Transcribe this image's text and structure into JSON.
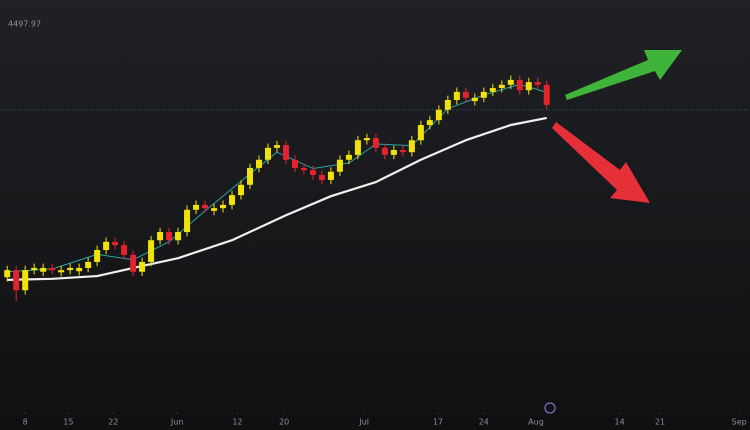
{
  "chart_data": {
    "type": "candlestick",
    "price_line": 4497.97,
    "open": [
      4190,
      4203,
      4166,
      4203,
      4200,
      4207,
      4199,
      4203,
      4201,
      4207,
      4218,
      4240,
      4255,
      4249,
      4231,
      4200,
      4218,
      4258,
      4273,
      4258,
      4273,
      4314,
      4323,
      4312,
      4317,
      4323,
      4341,
      4360,
      4391,
      4406,
      4428,
      4433,
      4406,
      4391,
      4387,
      4378,
      4369,
      4384,
      4406,
      4415,
      4442,
      4446,
      4428,
      4415,
      4424,
      4420,
      4442,
      4470,
      4479,
      4498,
      4516,
      4531,
      4514,
      4520,
      4531,
      4538,
      4544,
      4553,
      4534,
      4549,
      4544
    ],
    "high": [
      4211,
      4211,
      4211,
      4215,
      4215,
      4215,
      4211,
      4215,
      4215,
      4226,
      4248,
      4263,
      4263,
      4257,
      4239,
      4226,
      4266,
      4281,
      4281,
      4281,
      4322,
      4331,
      4331,
      4325,
      4331,
      4349,
      4368,
      4399,
      4414,
      4436,
      4441,
      4441,
      4414,
      4399,
      4395,
      4386,
      4392,
      4414,
      4423,
      4450,
      4454,
      4454,
      4436,
      4432,
      4432,
      4450,
      4478,
      4487,
      4506,
      4524,
      4539,
      4539,
      4528,
      4539,
      4546,
      4552,
      4561,
      4561,
      4557,
      4557,
      4552
    ],
    "low": [
      4182,
      4146,
      4158,
      4195,
      4192,
      4195,
      4191,
      4195,
      4193,
      4199,
      4210,
      4232,
      4241,
      4223,
      4192,
      4192,
      4210,
      4250,
      4250,
      4250,
      4265,
      4306,
      4309,
      4304,
      4309,
      4315,
      4333,
      4352,
      4383,
      4398,
      4420,
      4398,
      4383,
      4379,
      4370,
      4361,
      4361,
      4376,
      4398,
      4407,
      4434,
      4420,
      4407,
      4407,
      4412,
      4412,
      4434,
      4462,
      4471,
      4490,
      4508,
      4512,
      4506,
      4512,
      4523,
      4530,
      4536,
      4526,
      4526,
      4536,
      4499
    ],
    "close": [
      4203,
      4166,
      4203,
      4207,
      4207,
      4203,
      4203,
      4207,
      4207,
      4218,
      4240,
      4255,
      4249,
      4231,
      4200,
      4218,
      4258,
      4273,
      4258,
      4273,
      4314,
      4323,
      4317,
      4317,
      4323,
      4341,
      4360,
      4391,
      4406,
      4428,
      4433,
      4406,
      4391,
      4387,
      4378,
      4369,
      4384,
      4406,
      4415,
      4442,
      4446,
      4428,
      4415,
      4424,
      4420,
      4442,
      4470,
      4479,
      4498,
      4516,
      4531,
      4520,
      4520,
      4531,
      4538,
      4544,
      4553,
      4534,
      4549,
      4544,
      4507
    ],
    "up_color": "#f2e20c",
    "down_color": "#e3242f",
    "overlays": [
      {
        "color": "#f0f0f0",
        "x": [
          0,
          5,
          10,
          14,
          19,
          25,
          31,
          36,
          41,
          46,
          51,
          56,
          60
        ],
        "values": [
          4185,
          4187,
          4192,
          4207,
          4225,
          4258,
          4304,
          4339,
          4365,
          4406,
          4442,
          4470,
          4483
        ]
      },
      {
        "color": "#2aa3a8",
        "x": [
          0,
          5,
          10,
          14,
          18,
          22,
          27,
          30,
          34,
          38,
          41,
          45,
          49,
          53,
          57,
          60
        ],
        "values": [
          4200,
          4205,
          4232,
          4222,
          4255,
          4312,
          4380,
          4420,
          4390,
          4400,
          4435,
          4432,
          4500,
          4525,
          4545,
          4530
        ]
      }
    ],
    "ylim": [
      3964,
      4700
    ],
    "xlim": [
      -0.8,
      82.6
    ],
    "xticks": [
      {
        "value": 2,
        "label": "8"
      },
      {
        "value": 6.8,
        "label": "15"
      },
      {
        "value": 11.8,
        "label": "22"
      },
      {
        "value": 18.9,
        "label": "Jun"
      },
      {
        "value": 25.6,
        "label": "12"
      },
      {
        "value": 30.8,
        "label": "20"
      },
      {
        "value": 39.7,
        "label": "Jul"
      },
      {
        "value": 47.9,
        "label": "17"
      },
      {
        "value": 53,
        "label": "24"
      },
      {
        "value": 58.8,
        "label": "Aug"
      },
      {
        "value": 68.1,
        "label": "14"
      },
      {
        "value": 72.6,
        "label": "21"
      },
      {
        "value": 81.4,
        "label": "Sep"
      }
    ]
  }
}
